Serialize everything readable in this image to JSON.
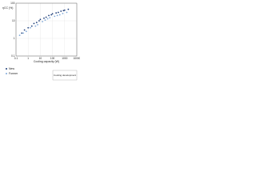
{
  "chart_data": {
    "type": "scatter",
    "log_x": true,
    "log_y": true,
    "grid": true,
    "x_label": "Cooling capacity (W)",
    "y_label": "ηCC (%)",
    "annotation": "Cooling development",
    "xlim": [
      0.1,
      10000
    ],
    "xticks": [
      0.1,
      1,
      10,
      100,
      1000,
      10000
    ],
    "ylim": [
      0.1,
      100
    ],
    "yticks": [
      0.1,
      1,
      10,
      100
    ],
    "series": [
      {
        "name": "New",
        "color": "#1f3f7a",
        "x": [
          0.3,
          0.5,
          1,
          2,
          3,
          5,
          8,
          10,
          20,
          30,
          50,
          80,
          100,
          200,
          300,
          500,
          800,
          1000,
          2000
        ],
        "values": [
          2,
          3,
          4,
          5,
          7,
          8,
          10,
          12,
          14,
          16,
          20,
          22,
          25,
          28,
          30,
          35,
          38,
          40,
          45
        ]
      },
      {
        "name": "Former",
        "color": "#7fa8d8",
        "x": [
          0.2,
          0.4,
          0.7,
          1.5,
          4,
          6,
          15,
          25,
          40,
          60,
          150,
          250,
          400,
          700,
          1500
        ],
        "values": [
          1.5,
          2,
          2.5,
          4,
          5,
          6,
          9,
          11,
          13,
          15,
          18,
          20,
          22,
          26,
          30
        ]
      }
    ]
  }
}
